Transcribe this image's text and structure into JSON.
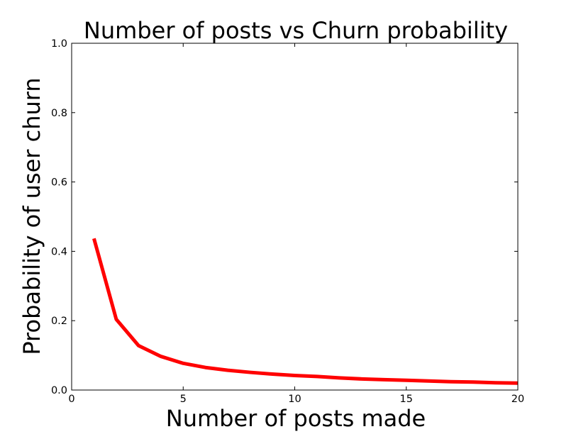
{
  "chart_data": {
    "type": "line",
    "title": "Number of posts vs Churn probability",
    "xlabel": "Number of posts made",
    "ylabel": "Probability of user churn",
    "xlim": [
      0,
      20
    ],
    "ylim": [
      0,
      1.0
    ],
    "x_ticks": [
      0,
      5,
      10,
      15,
      20
    ],
    "x_tick_labels": [
      "0",
      "5",
      "10",
      "15",
      "20"
    ],
    "y_ticks": [
      0.0,
      0.2,
      0.4,
      0.6,
      0.8,
      1.0
    ],
    "y_tick_labels": [
      "0.0",
      "0.2",
      "0.4",
      "0.6",
      "0.8",
      "1.0"
    ],
    "grid": false,
    "series": [
      {
        "color": "#ff0000",
        "x": [
          1,
          2,
          3,
          4,
          5,
          6,
          7,
          8,
          9,
          10,
          11,
          12,
          13,
          14,
          15,
          16,
          17,
          18,
          19,
          20
        ],
        "y": [
          0.437,
          0.204,
          0.128,
          0.097,
          0.077,
          0.065,
          0.057,
          0.051,
          0.046,
          0.042,
          0.039,
          0.035,
          0.032,
          0.03,
          0.028,
          0.026,
          0.024,
          0.023,
          0.021,
          0.02
        ]
      }
    ]
  }
}
